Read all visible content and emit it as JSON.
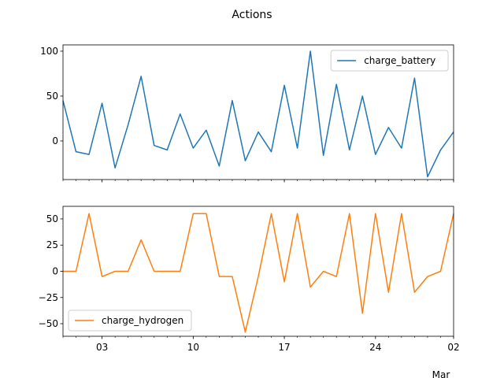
{
  "chart_data": {
    "type": "line",
    "title": "Actions",
    "x_range": [
      "2023-01-31",
      "2023-03-02"
    ],
    "x_tick_labels": [
      {
        "date": "2023-02-03",
        "label": "03"
      },
      {
        "date": "2023-02-10",
        "label": "10"
      },
      {
        "date": "2023-02-17",
        "label": "17"
      },
      {
        "date": "2023-02-24",
        "label": "24"
      },
      {
        "date": "2023-03-02",
        "label": "02"
      }
    ],
    "x_secondary_label": "Mar",
    "panels": [
      {
        "ylim": [
          -43,
          107
        ],
        "yticks": [
          0,
          50,
          100
        ],
        "legend_position": "upper right",
        "series": [
          {
            "name": "charge_battery",
            "color": "#1f77b4",
            "x": [
              "2023-01-31",
              "2023-02-01",
              "2023-02-02",
              "2023-02-03",
              "2023-02-04",
              "2023-02-05",
              "2023-02-06",
              "2023-02-07",
              "2023-02-08",
              "2023-02-09",
              "2023-02-10",
              "2023-02-11",
              "2023-02-12",
              "2023-02-13",
              "2023-02-14",
              "2023-02-15",
              "2023-02-16",
              "2023-02-17",
              "2023-02-18",
              "2023-02-19",
              "2023-02-20",
              "2023-02-21",
              "2023-02-22",
              "2023-02-23",
              "2023-02-24",
              "2023-02-25",
              "2023-02-26",
              "2023-02-27",
              "2023-02-28",
              "2023-03-01",
              "2023-03-02"
            ],
            "y": [
              45,
              -12,
              -15,
              42,
              -30,
              18,
              72,
              -5,
              -10,
              30,
              -8,
              12,
              -28,
              45,
              -22,
              10,
              -12,
              62,
              -8,
              100,
              -16,
              63,
              -10,
              50,
              -15,
              15,
              -8,
              70,
              -40,
              -10,
              10
            ]
          }
        ]
      },
      {
        "ylim": [
          -62,
          62
        ],
        "yticks": [
          -50,
          -25,
          0,
          25,
          50
        ],
        "legend_position": "lower left",
        "series": [
          {
            "name": "charge_hydrogen",
            "color": "#ff7f0e",
            "x": [
              "2023-01-31",
              "2023-02-01",
              "2023-02-02",
              "2023-02-03",
              "2023-02-04",
              "2023-02-05",
              "2023-02-06",
              "2023-02-07",
              "2023-02-08",
              "2023-02-09",
              "2023-02-10",
              "2023-02-11",
              "2023-02-12",
              "2023-02-13",
              "2023-02-14",
              "2023-02-15",
              "2023-02-16",
              "2023-02-17",
              "2023-02-18",
              "2023-02-19",
              "2023-02-20",
              "2023-02-21",
              "2023-02-22",
              "2023-02-23",
              "2023-02-24",
              "2023-02-25",
              "2023-02-26",
              "2023-02-27",
              "2023-02-28",
              "2023-03-01",
              "2023-03-02"
            ],
            "y": [
              0,
              0,
              55,
              -5,
              0,
              0,
              30,
              0,
              0,
              0,
              55,
              55,
              -5,
              -5,
              -58,
              -5,
              55,
              -10,
              55,
              -15,
              0,
              -5,
              55,
              -40,
              55,
              -20,
              55,
              -20,
              -5,
              0,
              55
            ]
          }
        ]
      }
    ]
  }
}
